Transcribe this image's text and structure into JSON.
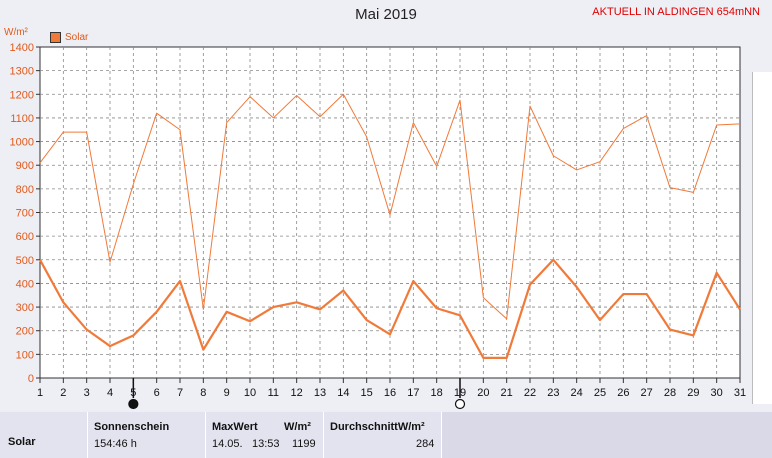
{
  "title": "Mai 2019",
  "station": "AKTUELL IN ALDINGEN 654mNN",
  "unit": "W/m²",
  "legend": "Solar",
  "colors": {
    "series": "#f07a3a",
    "grid": "#888888",
    "station": "#e00000"
  },
  "moon_icons": [
    {
      "day": 5,
      "icon": "new-moon-icon"
    },
    {
      "day": 19,
      "icon": "full-moon-icon"
    }
  ],
  "chart_data": {
    "type": "line",
    "x": [
      1,
      2,
      3,
      4,
      5,
      6,
      7,
      8,
      9,
      10,
      11,
      12,
      13,
      14,
      15,
      16,
      17,
      18,
      19,
      20,
      21,
      22,
      23,
      24,
      25,
      26,
      27,
      28,
      29,
      30,
      31
    ],
    "series": [
      {
        "name": "Solar",
        "style": "max",
        "values": [
          910,
          1040,
          1040,
          490,
          820,
          1120,
          1050,
          290,
          1080,
          1190,
          1100,
          1195,
          1105,
          1200,
          1020,
          690,
          1080,
          895,
          1175,
          340,
          250,
          1150,
          940,
          880,
          915,
          1055,
          1110,
          805,
          785,
          1070,
          1075
        ]
      },
      {
        "name": "Solar",
        "style": "mean",
        "values": [
          500,
          320,
          205,
          135,
          180,
          280,
          410,
          120,
          280,
          240,
          300,
          320,
          290,
          370,
          245,
          185,
          410,
          295,
          265,
          85,
          85,
          395,
          500,
          385,
          245,
          355,
          355,
          205,
          180,
          445,
          290
        ]
      }
    ],
    "ylim": [
      0,
      1400
    ],
    "yticks": [
      0,
      100,
      200,
      300,
      400,
      500,
      600,
      700,
      800,
      900,
      1000,
      1100,
      1200,
      1300,
      1400
    ],
    "xlim": [
      1,
      31
    ],
    "grid": true,
    "legend_position": "top-left"
  },
  "stats": {
    "row_label": "Solar",
    "sonnenschein": {
      "label": "Sonnenschein",
      "value": "154:46 h"
    },
    "maxwert": {
      "label": "MaxWert",
      "unit": "W/m²",
      "date": "14.05.",
      "time": "13:53",
      "value": "1199"
    },
    "durchschnitt": {
      "label": "DurchschnittW/m²",
      "value": "284"
    }
  }
}
